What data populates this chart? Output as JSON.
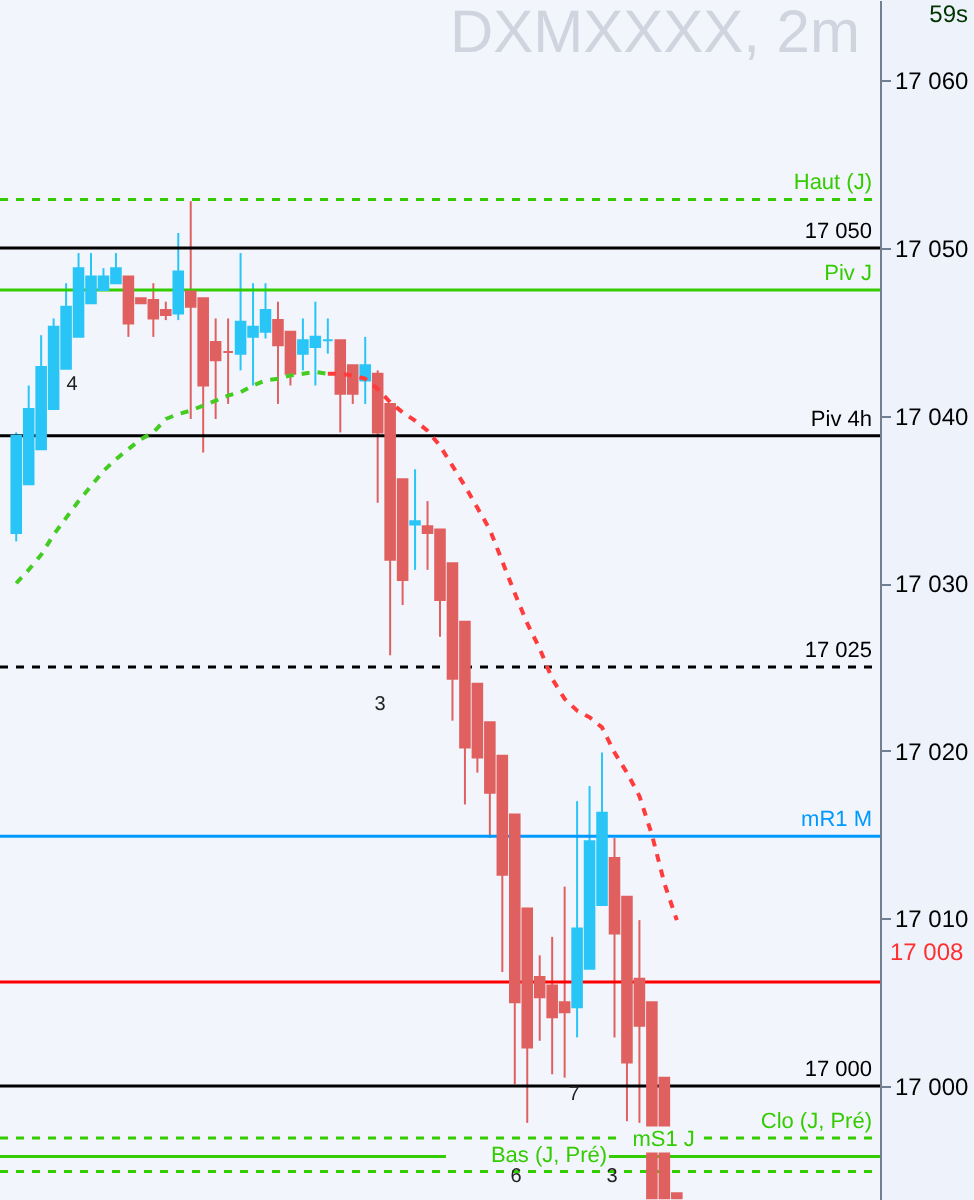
{
  "chart_data": {
    "type": "candlestick",
    "title": "DXMXXXX, 2m",
    "categories": [
      null,
      null,
      null,
      null,
      null,
      null,
      null,
      null,
      null,
      null,
      null,
      null,
      null,
      null,
      null,
      null,
      null,
      null,
      null,
      null,
      null,
      null,
      null,
      null,
      null,
      null,
      null,
      null,
      null,
      null,
      null,
      null,
      null,
      null,
      null,
      null,
      null,
      null,
      null,
      null,
      null,
      null,
      null,
      null,
      null,
      null,
      null,
      null,
      null,
      null,
      null,
      null,
      null,
      null,
      null,
      null,
      null,
      null,
      null,
      null,
      null,
      null,
      null,
      null,
      null,
      null,
      null,
      null,
      null
    ],
    "ohlc": [
      [
        17033.0,
        17039.0,
        17032.5,
        17038.8
      ],
      [
        17035.9,
        17041.8,
        17035.9,
        17040.4
      ],
      [
        17038.0,
        17044.8,
        17038.0,
        17042.9
      ],
      [
        17040.4,
        17045.8,
        17040.4,
        17045.3
      ],
      [
        17042.8,
        17047.9,
        17042.8,
        17046.5
      ],
      [
        17044.7,
        17049.7,
        17044.7,
        17048.8
      ],
      [
        17046.7,
        17049.7,
        17046.7,
        17048.3
      ],
      [
        17047.5,
        17048.8,
        17047.5,
        17048.3
      ],
      [
        17047.9,
        17049.7,
        17047.9,
        17048.8
      ],
      [
        17048.3,
        17048.3,
        17044.7,
        17045.5
      ],
      [
        17047.0,
        17047.0,
        17046.7,
        17046.7
      ],
      [
        17046.9,
        17047.9,
        17044.7,
        17045.8
      ],
      [
        17046.3,
        17046.8,
        17045.7,
        17046.0
      ],
      [
        17046.1,
        17050.9,
        17045.7,
        17048.6
      ],
      [
        17047.4,
        17052.8,
        17039.8,
        17046.5
      ],
      [
        17047.0,
        17047.0,
        17037.8,
        17041.8
      ],
      [
        17044.4,
        17045.8,
        17039.8,
        17043.3
      ],
      [
        17043.8,
        17045.8,
        17040.7,
        17043.8
      ],
      [
        17043.7,
        17049.7,
        17042.7,
        17045.6
      ],
      [
        17044.7,
        17047.9,
        17041.8,
        17045.3
      ],
      [
        17045.0,
        17047.9,
        17044.6,
        17046.3
      ],
      [
        17045.7,
        17046.8,
        17040.7,
        17044.2
      ],
      [
        17045.0,
        17045.0,
        17041.8,
        17042.5
      ],
      [
        17043.7,
        17045.8,
        17042.7,
        17044.5
      ],
      [
        17044.1,
        17046.8,
        17041.8,
        17044.7
      ],
      [
        17044.5,
        17045.8,
        17043.7,
        17044.5
      ],
      [
        17044.5,
        17044.5,
        17039.0,
        17041.3
      ],
      [
        17043.0,
        17043.0,
        17040.7,
        17041.3
      ],
      [
        17042.1,
        17044.7,
        17040.7,
        17043.0
      ],
      [
        17042.5,
        17042.7,
        17034.8,
        17039.0
      ],
      [
        17040.7,
        17040.7,
        17025.7,
        17031.4
      ],
      [
        17036.2,
        17036.2,
        17028.7,
        17030.2
      ],
      [
        17033.5,
        17036.8,
        17030.8,
        17033.7
      ],
      [
        17033.4,
        17034.9,
        17030.8,
        17033.0
      ],
      [
        17033.2,
        17033.2,
        17026.8,
        17029.0
      ],
      [
        17031.2,
        17031.2,
        17021.8,
        17024.3
      ],
      [
        17027.7,
        17027.7,
        17016.8,
        17020.2
      ],
      [
        17024.0,
        17024.0,
        17018.7,
        17019.6
      ],
      [
        17021.7,
        17021.7,
        17014.8,
        17017.5
      ],
      [
        17019.7,
        17019.7,
        17006.8,
        17012.6
      ],
      [
        17016.2,
        17016.2,
        17000.1,
        17005.0
      ],
      [
        17010.6,
        17010.6,
        16997.8,
        17002.3
      ],
      [
        17006.5,
        17007.8,
        17002.7,
        17005.3
      ],
      [
        17006.0,
        17008.9,
        17000.7,
        17004.1
      ],
      [
        17005.0,
        17011.9,
        17000.5,
        17004.4
      ],
      [
        17004.7,
        17017.0,
        17002.9,
        17009.4
      ],
      [
        17007.0,
        17017.9,
        17007.0,
        17014.6
      ],
      [
        17010.8,
        17019.9,
        17010.8,
        17016.3
      ],
      [
        17013.6,
        17014.8,
        17002.9,
        17009.1
      ],
      [
        17011.3,
        17011.3,
        16997.9,
        17001.4
      ],
      [
        17006.4,
        17009.9,
        16997.8,
        17003.6
      ],
      [
        17005.0,
        17005.0,
        16993.3,
        16993.3
      ],
      [
        17000.5,
        17000.5,
        16993.3,
        16993.3
      ],
      [
        16993.6,
        16993.6,
        16993.3,
        16993.3
      ],
      null,
      null,
      null,
      null,
      null,
      null,
      null,
      null,
      null,
      null,
      null,
      null,
      null,
      null,
      null
    ],
    "colors": [
      "#29c5f6",
      "#29c5f6",
      "#29c5f6",
      "#29c5f6",
      "#29c5f6",
      "#29c5f6",
      "#29c5f6",
      "#29c5f6",
      "#29c5f6",
      "#e06060",
      "#e06060",
      "#e06060",
      "#e06060",
      "#29c5f6",
      "#e06060",
      "#e06060",
      "#e06060",
      "#e06060",
      "#29c5f6",
      "#29c5f6",
      "#29c5f6",
      "#e06060",
      "#e06060",
      "#29c5f6",
      "#29c5f6",
      "#29c5f6",
      "#e06060",
      "#e06060",
      "#29c5f6",
      "#e06060",
      "#e06060",
      "#e06060",
      "#29c5f6",
      "#e06060",
      "#e06060",
      "#e06060",
      "#e06060",
      "#e06060",
      "#e06060",
      "#e06060",
      "#e06060",
      "#e06060",
      "#e06060",
      "#e06060",
      "#e06060",
      "#29c5f6",
      "#29c5f6",
      "#29c5f6",
      "#e06060",
      "#e06060",
      "#e06060",
      "#e06060",
      "#e06060",
      "#e06060",
      null,
      null,
      null,
      null,
      null,
      null,
      null,
      null,
      null,
      null,
      null,
      null,
      null,
      null,
      null
    ],
    "series": [
      {
        "type": "line",
        "color": "#44cc22",
        "line_style": "dashed",
        "marker": "none",
        "values": [
          17030.0,
          17030.8,
          17031.7,
          17032.9,
          17033.9,
          17034.9,
          17035.8,
          17036.7,
          17037.4,
          17038.0,
          17038.6,
          17039.0,
          17039.8,
          17040.1,
          17040.3,
          17040.6,
          17040.9,
          17041.2,
          17041.4,
          17041.8,
          17042.1,
          17042.2,
          17042.4,
          17042.5,
          17042.6,
          17042.5,
          null,
          null,
          null,
          null,
          null,
          null,
          null,
          null,
          null,
          null,
          null,
          null,
          null,
          null,
          null,
          null,
          null,
          null,
          null,
          null,
          null,
          null,
          null,
          null,
          null,
          null,
          null,
          null,
          null,
          null,
          null,
          null,
          null,
          null,
          null,
          null,
          null,
          null,
          null,
          null,
          null,
          null,
          null
        ]
      },
      {
        "type": "line",
        "color": "#ff3b3b",
        "line_style": "dashed",
        "marker": "none",
        "values": [
          null,
          null,
          null,
          null,
          null,
          null,
          null,
          null,
          null,
          null,
          null,
          null,
          null,
          null,
          null,
          null,
          null,
          null,
          null,
          null,
          null,
          null,
          null,
          null,
          null,
          17042.5,
          17042.5,
          17042.4,
          17042.2,
          17041.6,
          17040.8,
          17040.2,
          17039.7,
          17039.1,
          17038.2,
          17037.0,
          17035.8,
          17034.5,
          17033.2,
          17031.3,
          17029.4,
          17027.6,
          17026.1,
          17024.3,
          17023.1,
          17022.4,
          17022.0,
          17021.4,
          17019.9,
          17018.7,
          17017.3,
          17015.0,
          17012.1,
          17009.9,
          null,
          null,
          null,
          null,
          null,
          null,
          null,
          null,
          null,
          null,
          null,
          null,
          null,
          null,
          null
        ]
      }
    ],
    "ylim": [
      16993.2,
      17064.8
    ],
    "yticks": [
      {
        "value": 17000,
        "label": "17 000"
      },
      {
        "value": 17010,
        "label": "17 010"
      },
      {
        "value": 17020,
        "label": "17 020"
      },
      {
        "value": 17030,
        "label": "17 030"
      },
      {
        "value": 17040,
        "label": "17 040"
      },
      {
        "value": 17050,
        "label": "17 050"
      },
      {
        "value": 17060,
        "label": "17 060"
      }
    ],
    "tick_labels": "y",
    "ref_lines": [
      {
        "axis": "y",
        "value": 17052.9,
        "label": "Haut (J)",
        "color": "#33cc00",
        "line_style": "dashed"
      },
      {
        "axis": "y",
        "value": 17050,
        "label": "17 050",
        "color": "#000000",
        "line_style": "solid"
      },
      {
        "axis": "y",
        "value": 17047.5,
        "label": "Piv J",
        "color": "#33cc00",
        "line_style": "solid"
      },
      {
        "axis": "y",
        "value": 17038.8,
        "label": "Piv 4h",
        "color": "#000000",
        "line_style": "solid"
      },
      {
        "axis": "y",
        "value": 17025,
        "label": "17 025",
        "color": "#000000",
        "line_style": "dashed"
      },
      {
        "axis": "y",
        "value": 17014.9,
        "label": "mR1 M",
        "color": "#0099ff",
        "line_style": "solid"
      },
      {
        "axis": "y",
        "value": 17006.2,
        "label": null,
        "color": "#ff0000",
        "line_style": "solid"
      },
      {
        "axis": "y",
        "value": 17000,
        "label": "17 000",
        "color": "#000000",
        "line_style": "solid"
      },
      {
        "axis": "y",
        "value": 16996.9,
        "label": "Clo (J, Pré)",
        "color": "#33cc00",
        "line_style": "dashed"
      },
      {
        "axis": "y",
        "value": 16995.8,
        "label": "mS1 J",
        "color": "#33cc00",
        "line_style": "solid"
      },
      {
        "axis": "y",
        "value": 16994.9,
        "label": "Bas (J, Pré)",
        "color": "#33cc00",
        "line_style": "dashed"
      }
    ],
    "annotations": [
      "59s",
      "17 008",
      "4",
      "3",
      "7",
      "6",
      "3"
    ],
    "grid": false
  }
}
